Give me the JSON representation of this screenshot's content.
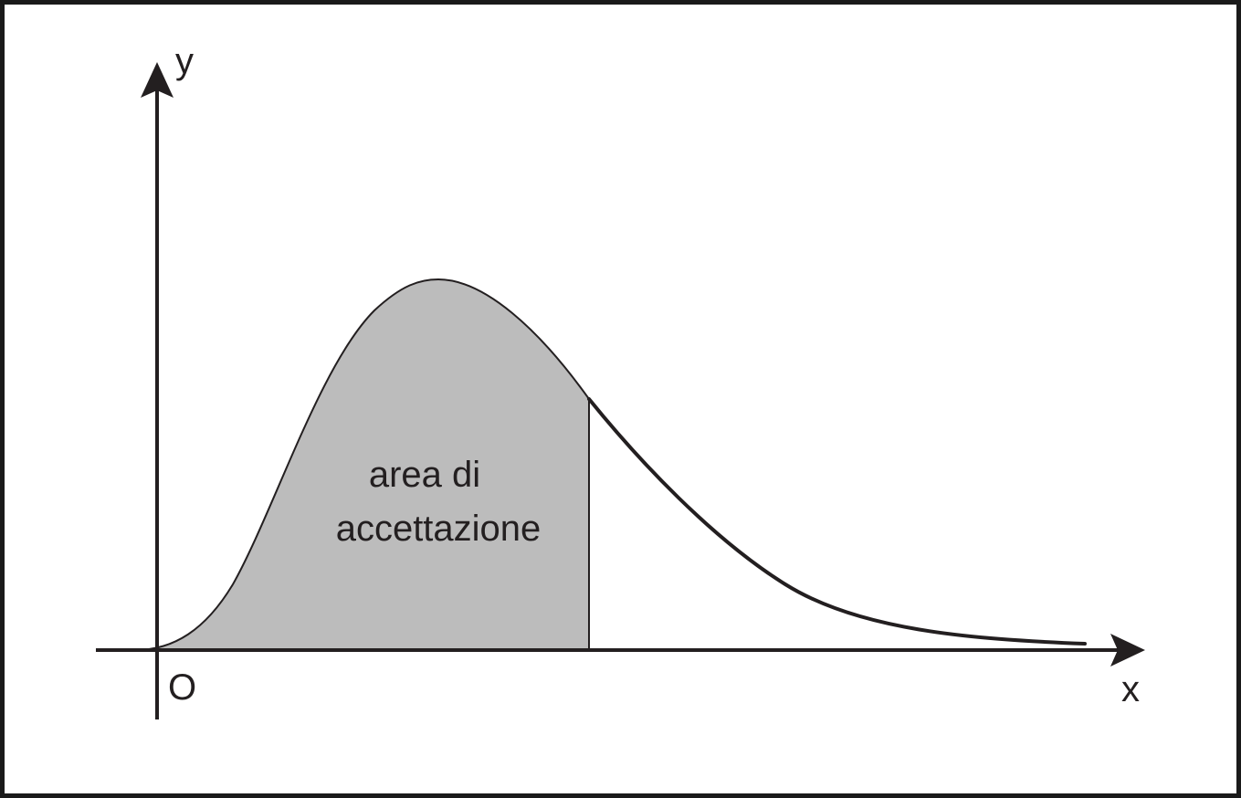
{
  "axes": {
    "y_label": "y",
    "x_label": "x",
    "origin_label": "O"
  },
  "region": {
    "label_line1": "area di",
    "label_line2": "accettazione",
    "fill_color": "#bcbcbc"
  },
  "colors": {
    "stroke": "#231f20",
    "frame": "#1a1a1a",
    "background": "#ffffff"
  }
}
